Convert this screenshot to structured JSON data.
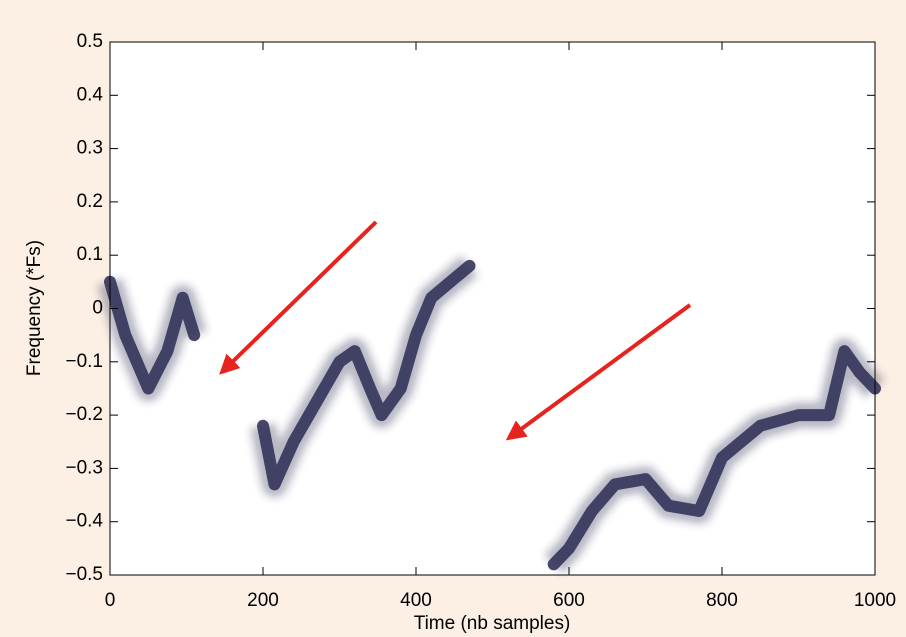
{
  "chart_data": {
    "type": "line",
    "x_label": "Time (nb samples)",
    "y_label": "Frequency (*Fs)",
    "x": [
      0,
      20,
      50,
      75,
      95,
      110,
      null,
      200,
      215,
      240,
      280,
      300,
      320,
      340,
      355,
      380,
      400,
      420,
      445,
      470,
      null,
      580,
      600,
      630,
      660,
      700,
      730,
      770,
      800,
      850,
      900,
      940,
      960,
      980,
      1000
    ],
    "values": [
      0.05,
      -0.05,
      -0.15,
      -0.08,
      0.02,
      -0.05,
      null,
      -0.22,
      -0.33,
      -0.25,
      -0.15,
      -0.1,
      -0.08,
      -0.15,
      -0.2,
      -0.15,
      -0.05,
      0.02,
      0.05,
      0.08,
      null,
      -0.48,
      -0.45,
      -0.38,
      -0.33,
      -0.32,
      -0.37,
      -0.38,
      -0.28,
      -0.22,
      -0.2,
      -0.2,
      -0.08,
      -0.12,
      -0.15
    ],
    "color": "#34345a",
    "xlim": [
      0,
      1000
    ],
    "xticks": [
      0,
      200,
      400,
      600,
      800,
      1000
    ],
    "ylim": [
      -0.5,
      0.5
    ],
    "yticks": [
      {
        "value": -0.5,
        "label": "−0.5"
      },
      {
        "value": -0.4,
        "label": "−0.4"
      },
      {
        "value": -0.3,
        "label": "−0.3"
      },
      {
        "value": -0.2,
        "label": "−0.2"
      },
      {
        "value": -0.1,
        "label": "−0.1"
      },
      0,
      0.1,
      0.2,
      0.3,
      0.4,
      0.5
    ]
  }
}
